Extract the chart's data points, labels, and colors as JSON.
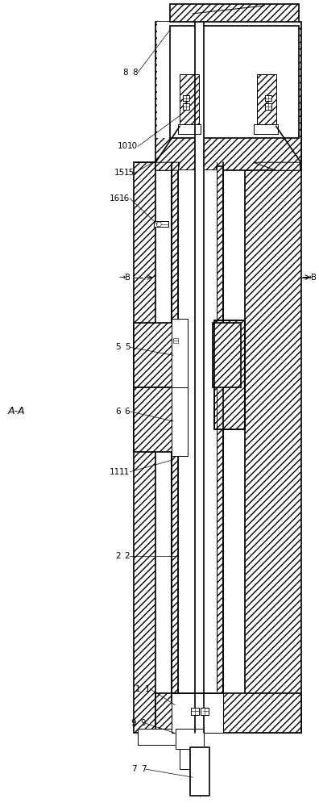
{
  "bg": "#ffffff",
  "lc": "#000000",
  "lw_main": 1.2,
  "lw_thin": 0.7,
  "lw_hair": 0.4,
  "label_fs": 7.5,
  "parts": {
    "AA_label": "A-A",
    "B_label": "→B",
    "nums": [
      "8",
      "10",
      "15",
      "16",
      "5",
      "6",
      "11",
      "2",
      "1",
      "9",
      "7"
    ]
  },
  "colors": {
    "hatch_fc": "#ffffff",
    "hatch_ec": "#000000",
    "hatch_pat": "////"
  }
}
